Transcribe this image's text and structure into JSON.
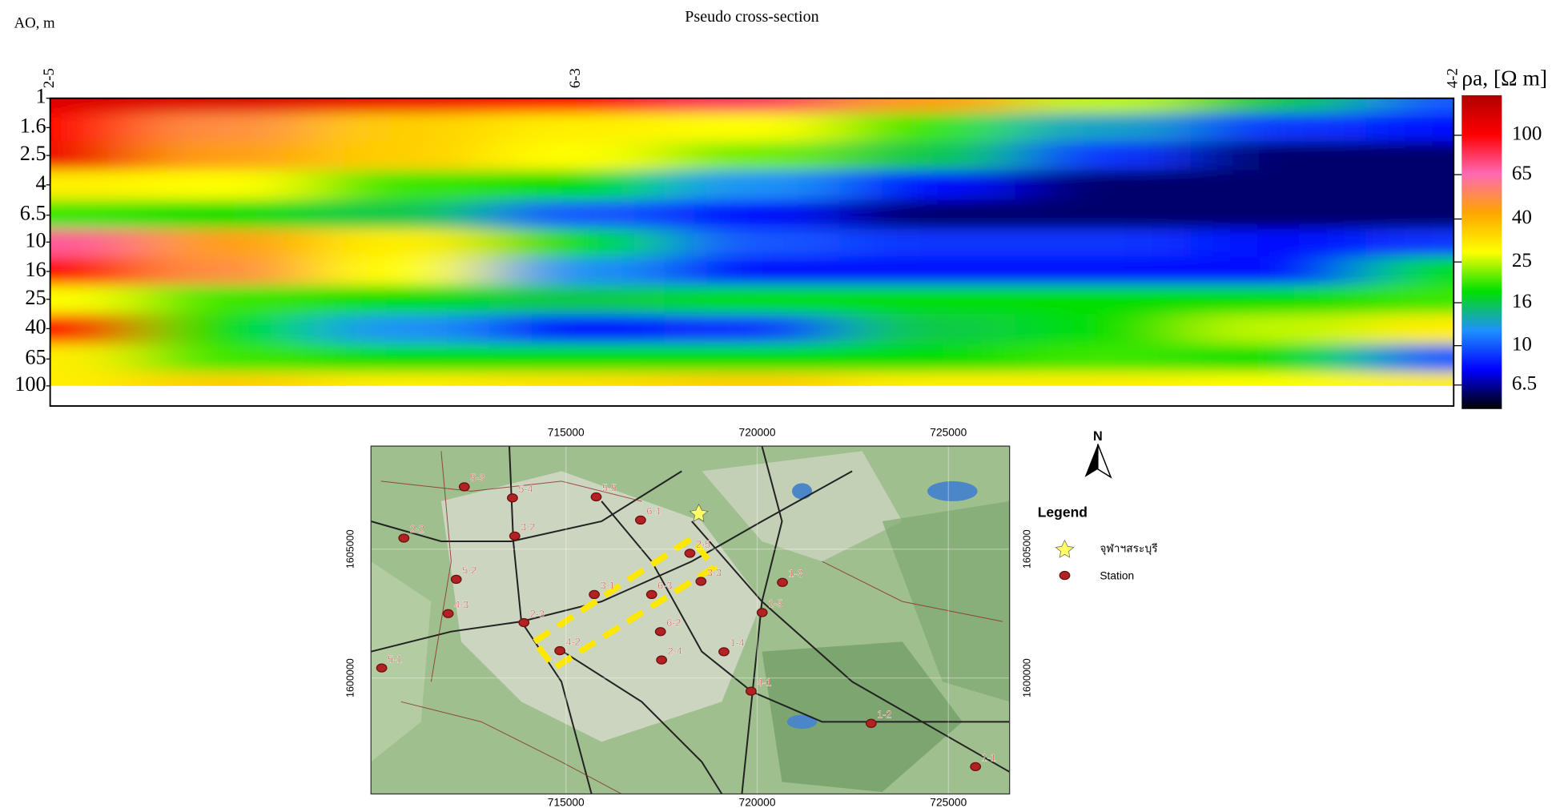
{
  "chart_data": {
    "type": "heatmap",
    "title": "Pseudo cross-section",
    "y_label": "AO, m",
    "categories": [
      "2-5",
      null,
      null,
      "6-3",
      null,
      null,
      null,
      null,
      "4-2"
    ],
    "y": [
      1,
      1.6,
      2.5,
      4,
      6.5,
      10,
      16,
      25,
      40,
      65,
      100
    ],
    "ylim": [
      1,
      138
    ],
    "yticks": [
      1,
      1.6,
      2.5,
      4,
      6.5,
      10,
      16,
      25,
      40,
      65,
      100
    ],
    "log_y": true,
    "values": [
      [
        120,
        120,
        110,
        100,
        80,
        45,
        25,
        16,
        10
      ],
      [
        100,
        50,
        35,
        30,
        28,
        20,
        13,
        9,
        8
      ],
      [
        110,
        45,
        35,
        28,
        22,
        16,
        9,
        6,
        6
      ],
      [
        30,
        28,
        20,
        18,
        12,
        8,
        6,
        6,
        6
      ],
      [
        20,
        18,
        16,
        10,
        8,
        6,
        6,
        6,
        6
      ],
      [
        70,
        45,
        30,
        18,
        10,
        9,
        9,
        8,
        9
      ],
      [
        100,
        50,
        28,
        12,
        8,
        8,
        8,
        8,
        18
      ],
      [
        28,
        20,
        18,
        16,
        18,
        18,
        18,
        18,
        20
      ],
      [
        100,
        18,
        12,
        8,
        9,
        16,
        18,
        25,
        30
      ],
      [
        30,
        20,
        18,
        18,
        18,
        18,
        20,
        18,
        10
      ],
      [
        30,
        35,
        30,
        32,
        35,
        30,
        30,
        28,
        30
      ]
    ],
    "colorbar_label": "ρa, [Ω m]",
    "zlim": [
      5,
      155
    ],
    "zticks": [
      6.5,
      10,
      16,
      25,
      40,
      65,
      100
    ],
    "log_z": true,
    "colorscale": [
      "#000000",
      "#0000ff",
      "#1e90ff",
      "#00e000",
      "#ffff00",
      "#ffa500",
      "#ff69b4",
      "#ff0000",
      "#b00000"
    ]
  },
  "map": {
    "xlim": [
      709900,
      726600
    ],
    "ylim": [
      1595500,
      1609000
    ],
    "xticks": [
      715000,
      720000,
      725000
    ],
    "yticks": [
      1605000,
      1600000
    ],
    "north": "N",
    "stations": [
      {
        "label": "5-3",
        "x": 712340,
        "y": 1607420
      },
      {
        "label": "5-4",
        "x": 713600,
        "y": 1606990
      },
      {
        "label": "5-5",
        "x": 715790,
        "y": 1607030
      },
      {
        "label": "6-1",
        "x": 716950,
        "y": 1606130
      },
      {
        "label": "3-2",
        "x": 713660,
        "y": 1605510
      },
      {
        "label": "2-2",
        "x": 710760,
        "y": 1605430
      },
      {
        "label": "5-2",
        "x": 712130,
        "y": 1603830
      },
      {
        "label": "4-3",
        "x": 711920,
        "y": 1602500
      },
      {
        "label": "2-3",
        "x": 713900,
        "y": 1602150
      },
      {
        "label": "3-1",
        "x": 715740,
        "y": 1603240
      },
      {
        "label": "6-3",
        "x": 717240,
        "y": 1603240
      },
      {
        "label": "2-5",
        "x": 718240,
        "y": 1604840
      },
      {
        "label": "3-3",
        "x": 718530,
        "y": 1603750
      },
      {
        "label": "6-2",
        "x": 717470,
        "y": 1601800
      },
      {
        "label": "4-2",
        "x": 714840,
        "y": 1601060
      },
      {
        "label": "2-4",
        "x": 717500,
        "y": 1600700
      },
      {
        "label": "1-4",
        "x": 719130,
        "y": 1601020
      },
      {
        "label": "1-3",
        "x": 720660,
        "y": 1603710
      },
      {
        "label": "1-5",
        "x": 720130,
        "y": 1602540
      },
      {
        "label": "4-1",
        "x": 719840,
        "y": 1599490
      },
      {
        "label": "5-1",
        "x": 710180,
        "y": 1600390
      },
      {
        "label": "1-2",
        "x": 722980,
        "y": 1598240
      },
      {
        "label": "1-1",
        "x": 725710,
        "y": 1596560
      }
    ],
    "legend": {
      "title": "Legend",
      "items": [
        "จุฬาฯสระบุรี",
        "Station"
      ]
    }
  }
}
